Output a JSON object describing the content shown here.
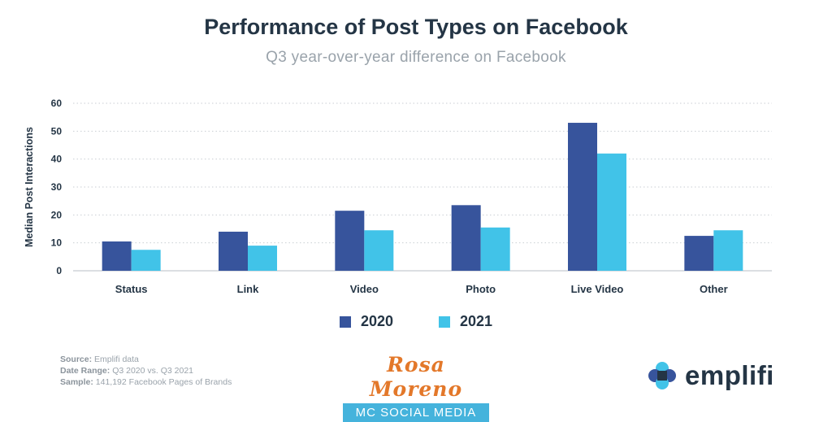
{
  "chart_data": {
    "type": "bar",
    "title": "Performance of Post Types on Facebook",
    "subtitle": "Q3 year-over-year difference on Facebook",
    "ylabel": "Median Post Interactions",
    "xlabel": "",
    "ylim": [
      0,
      60
    ],
    "yticks": [
      "0",
      "10",
      "20",
      "30",
      "40",
      "50",
      "60"
    ],
    "grid": true,
    "legend_position": "bottom",
    "categories": [
      "Status",
      "Link",
      "Video",
      "Photo",
      "Live Video",
      "Other"
    ],
    "series": [
      {
        "name": "2020",
        "color": "#37549c",
        "values": [
          10.5,
          14,
          21.5,
          23.5,
          53,
          12.5
        ]
      },
      {
        "name": "2021",
        "color": "#41c3e8",
        "values": [
          7.5,
          9,
          14.5,
          15.5,
          42,
          14.5
        ]
      }
    ]
  },
  "footnote": {
    "source_label": "Source:",
    "source_value": "Emplifi data",
    "range_label": "Date Range:",
    "range_value": "Q3 2020 vs. Q3 2021",
    "sample_label": "Sample:",
    "sample_value": "141,192 Facebook Pages of Brands"
  },
  "watermark": {
    "name": "Rosa Moreno",
    "tagline": "MC SOCIAL MEDIA"
  },
  "logo": {
    "text": "emplifi",
    "icon": "emplifi-logo-icon"
  }
}
